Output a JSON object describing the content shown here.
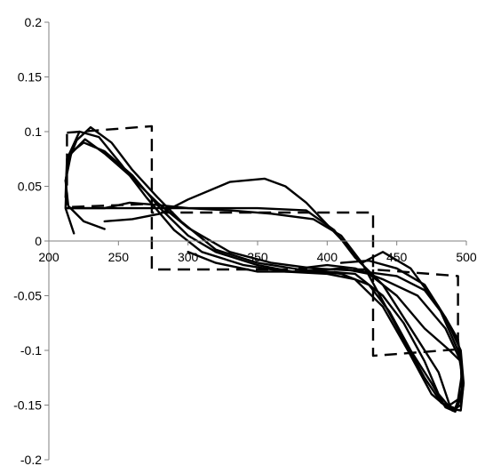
{
  "chart_data": {
    "type": "line",
    "title": "",
    "xlabel": "",
    "ylabel": "",
    "xlim": [
      200,
      500
    ],
    "ylim": [
      -0.2,
      0.2
    ],
    "x_ticks": [
      200,
      250,
      300,
      350,
      400,
      450,
      500
    ],
    "y_ticks": [
      -0.2,
      -0.15,
      -0.1,
      -0.05,
      0,
      0.05,
      0.1,
      0.15,
      0.2
    ],
    "x_tick_labels": [
      "200",
      "250",
      "300",
      "350",
      "400",
      "450",
      "500"
    ],
    "y_tick_labels": [
      "-0.2",
      "-0.15",
      "-0.1",
      "-0.05",
      "0",
      "0.05",
      "0.1",
      "0.15",
      "0.2"
    ],
    "grid": false,
    "legend": "none",
    "colors": {
      "axis": "#808080",
      "series": "#000000",
      "background": "#ffffff"
    },
    "series": [
      {
        "style": "dashed",
        "points": [
          [
            213,
            0.099
          ],
          [
            274,
            0.105
          ],
          [
            274,
            -0.026
          ],
          [
            433,
            -0.026
          ],
          [
            433,
            -0.105
          ],
          [
            494,
            -0.099
          ],
          [
            494,
            -0.032
          ],
          [
            433,
            -0.026
          ],
          [
            433,
            0.026
          ],
          [
            274,
            0.026
          ],
          [
            274,
            0.034
          ],
          [
            213,
            0.031
          ],
          [
            213,
            0.099
          ]
        ]
      },
      {
        "style": "solid",
        "points": [
          [
            240,
            0.011
          ],
          [
            225,
            0.018
          ],
          [
            214,
            0.032
          ],
          [
            212,
            0.055
          ],
          [
            216,
            0.08
          ],
          [
            226,
            0.093
          ],
          [
            240,
            0.08
          ],
          [
            258,
            0.06
          ],
          [
            278,
            0.035
          ],
          [
            300,
            0.012
          ],
          [
            330,
            -0.01
          ],
          [
            360,
            -0.02
          ],
          [
            390,
            -0.025
          ],
          [
            420,
            -0.027
          ],
          [
            450,
            -0.032
          ],
          [
            470,
            -0.045
          ],
          [
            485,
            -0.07
          ],
          [
            494,
            -0.09
          ],
          [
            497,
            -0.12
          ],
          [
            494,
            -0.145
          ],
          [
            488,
            -0.15
          ],
          [
            480,
            -0.12
          ],
          [
            465,
            -0.09
          ],
          [
            440,
            -0.04
          ],
          [
            420,
            -0.015
          ],
          [
            405,
            0.01
          ],
          [
            385,
            0.028
          ],
          [
            350,
            0.03
          ],
          [
            300,
            0.03
          ],
          [
            255,
            0.03
          ],
          [
            213,
            0.03
          ]
        ]
      },
      {
        "style": "solid",
        "points": [
          [
            218,
            0.007
          ],
          [
            212,
            0.03
          ],
          [
            213,
            0.07
          ],
          [
            220,
            0.092
          ],
          [
            230,
            0.104
          ],
          [
            245,
            0.09
          ],
          [
            260,
            0.065
          ],
          [
            278,
            0.04
          ],
          [
            295,
            0.018
          ],
          [
            320,
            -0.008
          ],
          [
            350,
            -0.02
          ],
          [
            380,
            -0.026
          ],
          [
            410,
            -0.03
          ],
          [
            430,
            -0.04
          ],
          [
            445,
            -0.065
          ],
          [
            460,
            -0.1
          ],
          [
            475,
            -0.13
          ],
          [
            485,
            -0.152
          ],
          [
            492,
            -0.156
          ],
          [
            497,
            -0.14
          ],
          [
            496,
            -0.11
          ],
          [
            485,
            -0.08
          ],
          [
            465,
            -0.05
          ],
          [
            440,
            -0.035
          ],
          [
            420,
            -0.025
          ],
          [
            400,
            -0.022
          ],
          [
            380,
            -0.025
          ]
        ]
      },
      {
        "style": "solid",
        "points": [
          [
            212,
            0.055
          ],
          [
            215,
            0.08
          ],
          [
            225,
            0.09
          ],
          [
            240,
            0.082
          ],
          [
            260,
            0.06
          ],
          [
            280,
            0.03
          ],
          [
            300,
            0.005
          ],
          [
            320,
            -0.01
          ],
          [
            350,
            -0.022
          ],
          [
            375,
            -0.028
          ],
          [
            400,
            -0.028
          ],
          [
            420,
            -0.03
          ],
          [
            440,
            -0.05
          ],
          [
            455,
            -0.075
          ],
          [
            470,
            -0.11
          ],
          [
            480,
            -0.14
          ],
          [
            490,
            -0.155
          ],
          [
            496,
            -0.15
          ],
          [
            498,
            -0.13
          ],
          [
            496,
            -0.1
          ],
          [
            485,
            -0.07
          ],
          [
            470,
            -0.04
          ],
          [
            450,
            -0.025
          ],
          [
            430,
            -0.018
          ],
          [
            410,
            -0.02
          ]
        ]
      },
      {
        "style": "solid",
        "points": [
          [
            212,
            0.04
          ],
          [
            213,
            0.075
          ],
          [
            222,
            0.1
          ],
          [
            236,
            0.095
          ],
          [
            252,
            0.07
          ],
          [
            270,
            0.04
          ],
          [
            290,
            0.01
          ],
          [
            310,
            -0.01
          ],
          [
            340,
            -0.022
          ],
          [
            370,
            -0.028
          ],
          [
            400,
            -0.03
          ],
          [
            420,
            -0.035
          ],
          [
            440,
            -0.06
          ],
          [
            458,
            -0.1
          ],
          [
            475,
            -0.14
          ],
          [
            487,
            -0.153
          ],
          [
            496,
            -0.155
          ],
          [
            498,
            -0.13
          ],
          [
            494,
            -0.1
          ],
          [
            480,
            -0.06
          ],
          [
            460,
            -0.025
          ],
          [
            440,
            -0.01
          ],
          [
            425,
            -0.02
          ],
          [
            415,
            -0.005
          ],
          [
            400,
            0.015
          ],
          [
            385,
            0.035
          ],
          [
            370,
            0.05
          ],
          [
            355,
            0.057
          ],
          [
            330,
            0.054
          ],
          [
            300,
            0.038
          ],
          [
            280,
            0.025
          ],
          [
            260,
            0.02
          ],
          [
            240,
            0.018
          ]
        ]
      },
      {
        "style": "solid",
        "points": [
          [
            214,
            0.03
          ],
          [
            240,
            0.03
          ],
          [
            258,
            0.035
          ],
          [
            278,
            0.033
          ],
          [
            300,
            0.03
          ],
          [
            330,
            0.028
          ],
          [
            360,
            0.025
          ],
          [
            390,
            0.02
          ],
          [
            410,
            0.005
          ],
          [
            425,
            -0.02
          ],
          [
            440,
            -0.055
          ],
          [
            455,
            -0.09
          ],
          [
            470,
            -0.125
          ],
          [
            482,
            -0.148
          ],
          [
            492,
            -0.153
          ],
          [
            497,
            -0.135
          ],
          [
            496,
            -0.11
          ],
          [
            488,
            -0.1
          ],
          [
            470,
            -0.08
          ],
          [
            450,
            -0.05
          ],
          [
            430,
            -0.03
          ],
          [
            410,
            -0.025
          ],
          [
            380,
            -0.028
          ],
          [
            350,
            -0.028
          ],
          [
            320,
            -0.02
          ],
          [
            300,
            -0.01
          ]
        ]
      }
    ]
  }
}
